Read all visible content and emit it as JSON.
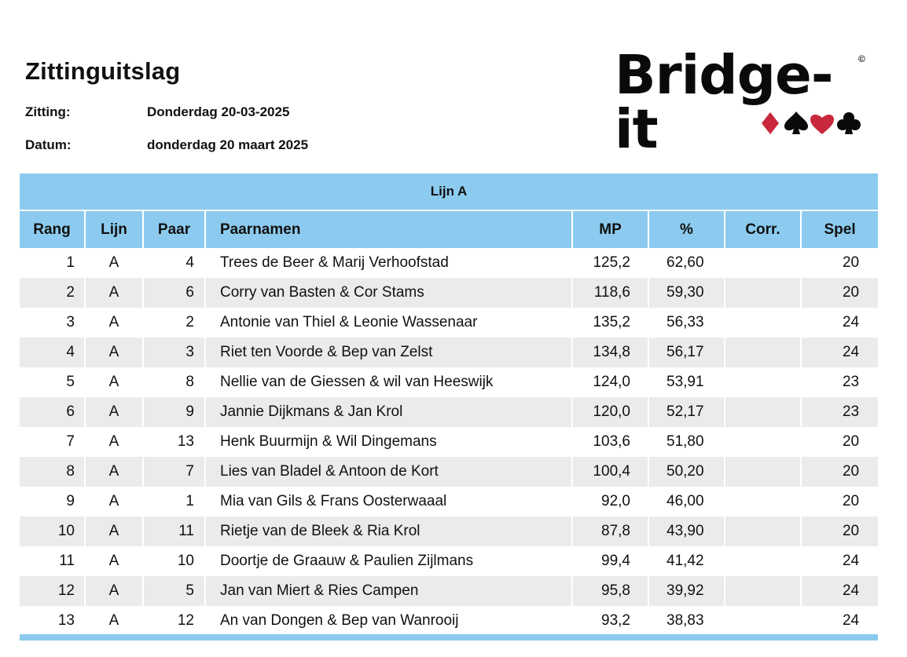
{
  "header": {
    "title": "Zittinguitslag",
    "zitting_label": "Zitting:",
    "zitting_value": "Donderdag 20-03-2025",
    "datum_label": "Datum:",
    "datum_value": "donderdag 20 maart 2025"
  },
  "logo": {
    "text": "Bridge-it",
    "copyright": "©",
    "suits": [
      "diamond",
      "spade",
      "heart",
      "club"
    ],
    "colors": {
      "red": "#c8283c",
      "black": "#0a0a0a"
    }
  },
  "table": {
    "line_title": "Lijn A",
    "columns": [
      "Rang",
      "Lijn",
      "Paar",
      "Paarnamen",
      "MP",
      "%",
      "Corr.",
      "Spel"
    ],
    "rows": [
      {
        "rang": "1",
        "lijn": "A",
        "paar": "4",
        "names": "Trees de Beer & Marij Verhoofstad",
        "mp": "125,2",
        "pct": "62,60",
        "corr": "",
        "spel": "20"
      },
      {
        "rang": "2",
        "lijn": "A",
        "paar": "6",
        "names": "Corry van Basten & Cor Stams",
        "mp": "118,6",
        "pct": "59,30",
        "corr": "",
        "spel": "20"
      },
      {
        "rang": "3",
        "lijn": "A",
        "paar": "2",
        "names": "Antonie van Thiel & Leonie Wassenaar",
        "mp": "135,2",
        "pct": "56,33",
        "corr": "",
        "spel": "24"
      },
      {
        "rang": "4",
        "lijn": "A",
        "paar": "3",
        "names": "Riet ten Voorde & Bep van Zelst",
        "mp": "134,8",
        "pct": "56,17",
        "corr": "",
        "spel": "24"
      },
      {
        "rang": "5",
        "lijn": "A",
        "paar": "8",
        "names": "Nellie van de Giessen & wil van Heeswijk",
        "mp": "124,0",
        "pct": "53,91",
        "corr": "",
        "spel": "23"
      },
      {
        "rang": "6",
        "lijn": "A",
        "paar": "9",
        "names": "Jannie Dijkmans & Jan Krol",
        "mp": "120,0",
        "pct": "52,17",
        "corr": "",
        "spel": "23"
      },
      {
        "rang": "7",
        "lijn": "A",
        "paar": "13",
        "names": "Henk Buurmijn & Wil Dingemans",
        "mp": "103,6",
        "pct": "51,80",
        "corr": "",
        "spel": "20"
      },
      {
        "rang": "8",
        "lijn": "A",
        "paar": "7",
        "names": "Lies van Bladel & Antoon de Kort",
        "mp": "100,4",
        "pct": "50,20",
        "corr": "",
        "spel": "20"
      },
      {
        "rang": "9",
        "lijn": "A",
        "paar": "1",
        "names": "Mia van Gils & Frans Oosterwaaal",
        "mp": "92,0",
        "pct": "46,00",
        "corr": "",
        "spel": "20"
      },
      {
        "rang": "10",
        "lijn": "A",
        "paar": "11",
        "names": "Rietje van de Bleek & Ria Krol",
        "mp": "87,8",
        "pct": "43,90",
        "corr": "",
        "spel": "20"
      },
      {
        "rang": "11",
        "lijn": "A",
        "paar": "10",
        "names": "Doortje de Graauw & Paulien Zijlmans",
        "mp": "99,4",
        "pct": "41,42",
        "corr": "",
        "spel": "24"
      },
      {
        "rang": "12",
        "lijn": "A",
        "paar": "5",
        "names": "Jan van Miert & Ries Campen",
        "mp": "95,8",
        "pct": "39,92",
        "corr": "",
        "spel": "24"
      },
      {
        "rang": "13",
        "lijn": "A",
        "paar": "12",
        "names": "An van Dongen & Bep van Wanrooij",
        "mp": "93,2",
        "pct": "38,83",
        "corr": "",
        "spel": "24"
      }
    ]
  },
  "colors": {
    "header_blue": "#8ccbef",
    "row_alt": "#ebebeb"
  }
}
